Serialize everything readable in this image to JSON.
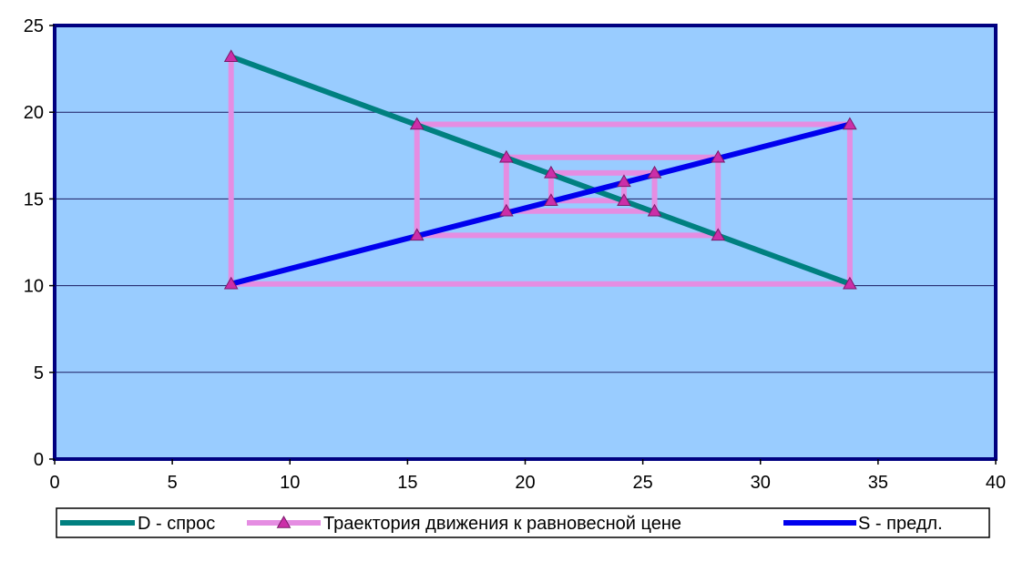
{
  "chart_data": {
    "type": "line",
    "title": "",
    "xlabel": "",
    "ylabel": "",
    "xlim": [
      0,
      40
    ],
    "ylim": [
      0,
      25
    ],
    "x_ticks": [
      0,
      5,
      10,
      15,
      20,
      25,
      30,
      35,
      40
    ],
    "y_ticks": [
      0,
      5,
      10,
      15,
      20,
      25
    ],
    "grid": "horizontal",
    "plot_background": "#99ccff",
    "plot_border": "#000080",
    "legend_position": "bottom",
    "series": [
      {
        "name": "D - спрос",
        "color": "#008080",
        "marker": "none",
        "points": [
          [
            7.5,
            23.2
          ],
          [
            33.8,
            10.1
          ]
        ]
      },
      {
        "name": "Траектория движения к равновесной цене",
        "color": "#e58de2",
        "marker": "triangle",
        "marker_color": "#cc2ea8",
        "points": [
          [
            7.5,
            23.2
          ],
          [
            7.5,
            10.1
          ],
          [
            33.8,
            10.1
          ],
          [
            33.8,
            19.3
          ],
          [
            15.4,
            19.3
          ],
          [
            15.4,
            12.9
          ],
          [
            28.2,
            12.9
          ],
          [
            28.2,
            17.4
          ],
          [
            19.2,
            17.4
          ],
          [
            19.2,
            14.3
          ],
          [
            25.5,
            14.3
          ],
          [
            25.5,
            16.5
          ],
          [
            21.1,
            16.5
          ],
          [
            21.1,
            14.9
          ],
          [
            24.2,
            14.9
          ],
          [
            24.2,
            16.0
          ]
        ]
      },
      {
        "name": "S - предл.",
        "color": "#0000ee",
        "marker": "none",
        "points": [
          [
            7.5,
            10.1
          ],
          [
            33.8,
            19.3
          ]
        ]
      }
    ]
  }
}
